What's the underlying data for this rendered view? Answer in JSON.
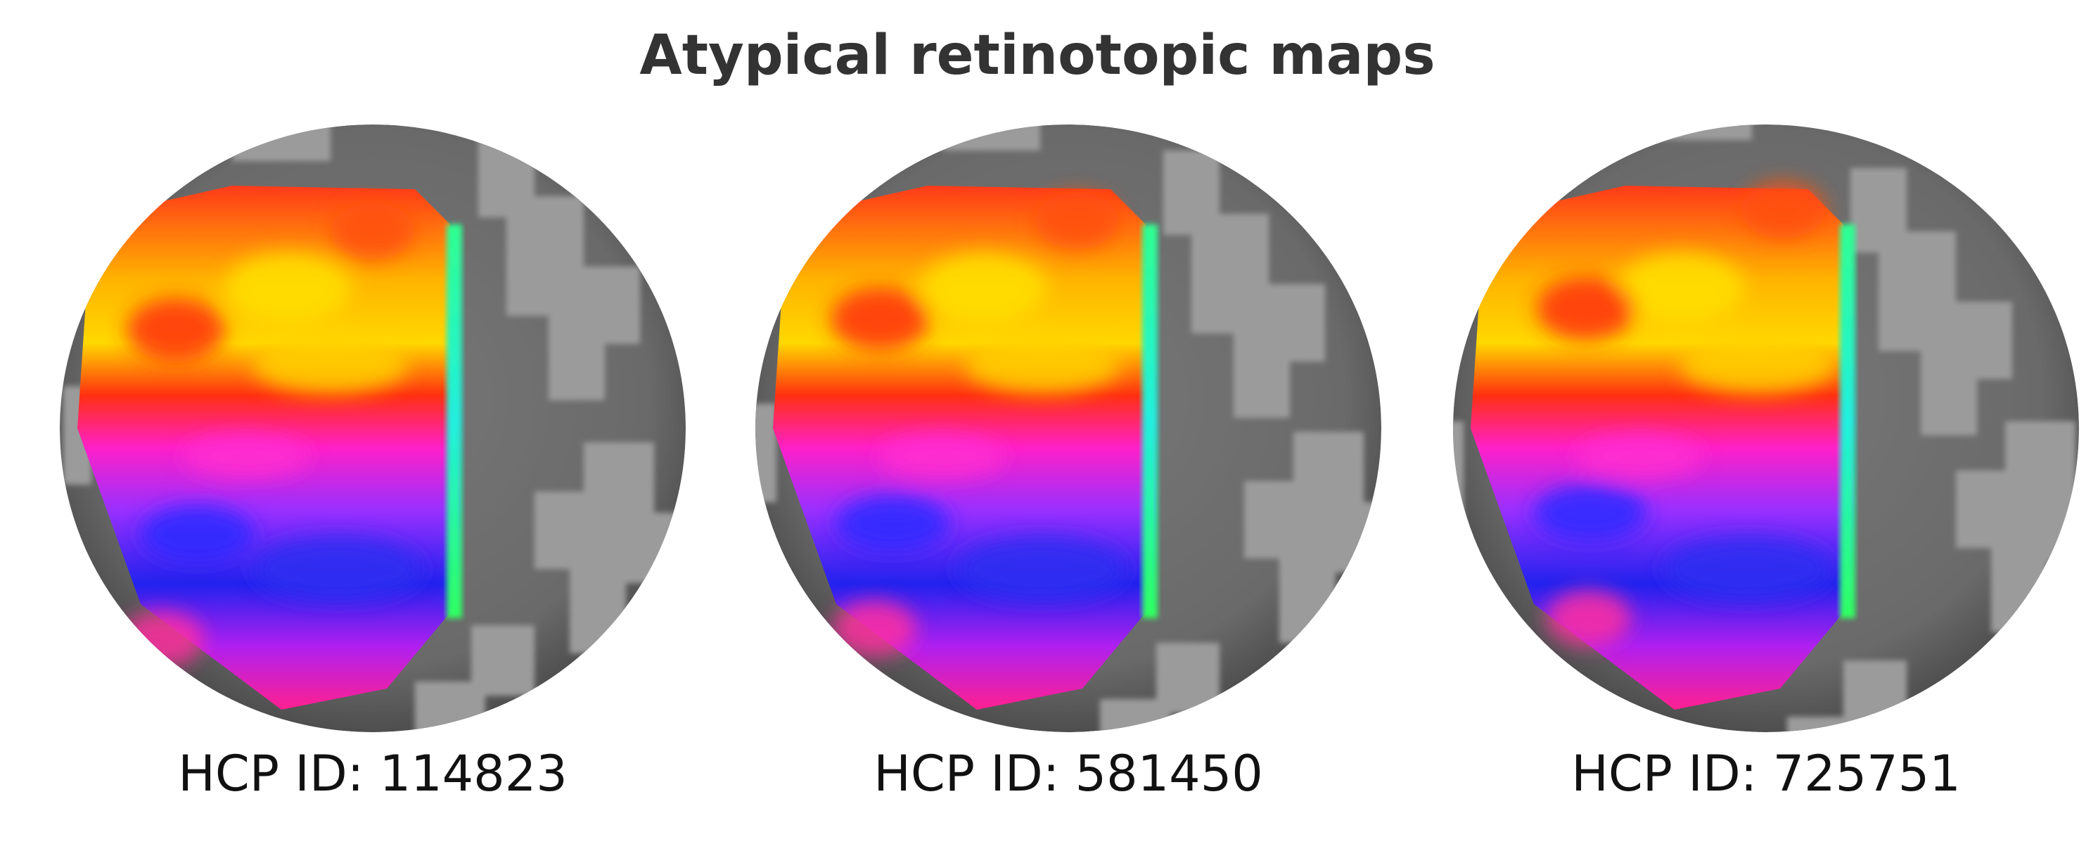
{
  "header": {
    "title": "Atypical retinotopic maps"
  },
  "panels": [
    {
      "label": "HCP ID: 114823"
    },
    {
      "label": "HCP ID: 581450"
    },
    {
      "label": "HCP ID: 725751"
    }
  ]
}
